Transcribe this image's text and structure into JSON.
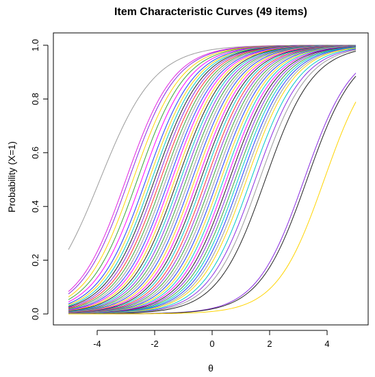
{
  "chart_data": {
    "type": "line",
    "title": "Item Characteristic Curves (49 items)",
    "xlabel": "θ",
    "ylabel": "Probability (X=1)",
    "xlim": [
      -5,
      5
    ],
    "ylim": [
      0,
      1
    ],
    "x_ticks": [
      -4,
      -2,
      0,
      2,
      4
    ],
    "y_ticks": [
      0.0,
      0.2,
      0.4,
      0.6,
      0.8,
      1.0
    ],
    "x_tick_labels": [
      "-4",
      "-2",
      "0",
      "2",
      "4"
    ],
    "y_tick_labels": [
      "0.0",
      "0.2",
      "0.4",
      "0.6",
      "0.8",
      "1.0"
    ],
    "grid": false,
    "model": "logistic",
    "series": [
      {
        "discrimination": 1.05,
        "difficulty": -3.9,
        "color": "#9a9a9a"
      },
      {
        "discrimination": 1.2,
        "difficulty": -3.0,
        "color": "#e020e0"
      },
      {
        "discrimination": 1.2,
        "difficulty": -2.9,
        "color": "#8a2be2"
      },
      {
        "discrimination": 1.2,
        "difficulty": -2.75,
        "color": "#ffd400"
      },
      {
        "discrimination": 1.2,
        "difficulty": -2.6,
        "color": "#3aa53a"
      },
      {
        "discrimination": 1.2,
        "difficulty": -2.45,
        "color": "#ff00ff"
      },
      {
        "discrimination": 1.2,
        "difficulty": -2.3,
        "color": "#1e3cff"
      },
      {
        "discrimination": 1.2,
        "difficulty": -2.2,
        "color": "#ffd400"
      },
      {
        "discrimination": 1.2,
        "difficulty": -2.1,
        "color": "#00c8c8"
      },
      {
        "discrimination": 1.2,
        "difficulty": -2.0,
        "color": "#222222"
      },
      {
        "discrimination": 1.2,
        "difficulty": -1.9,
        "color": "#8a2be2"
      },
      {
        "discrimination": 1.2,
        "difficulty": -1.8,
        "color": "#ff3030"
      },
      {
        "discrimination": 1.2,
        "difficulty": -1.7,
        "color": "#3aa53a"
      },
      {
        "discrimination": 1.2,
        "difficulty": -1.6,
        "color": "#9a9a9a"
      },
      {
        "discrimination": 1.2,
        "difficulty": -1.5,
        "color": "#1e3cff"
      },
      {
        "discrimination": 1.2,
        "difficulty": -1.4,
        "color": "#ff00ff"
      },
      {
        "discrimination": 1.2,
        "difficulty": -1.3,
        "color": "#ffd400"
      },
      {
        "discrimination": 1.2,
        "difficulty": -1.2,
        "color": "#222222"
      },
      {
        "discrimination": 1.2,
        "difficulty": -1.1,
        "color": "#00c8c8"
      },
      {
        "discrimination": 1.2,
        "difficulty": -1.0,
        "color": "#8a2be2"
      },
      {
        "discrimination": 1.2,
        "difficulty": -0.9,
        "color": "#3aa53a"
      },
      {
        "discrimination": 1.2,
        "difficulty": -0.8,
        "color": "#9a9a9a"
      },
      {
        "discrimination": 1.2,
        "difficulty": -0.7,
        "color": "#1e3cff"
      },
      {
        "discrimination": 1.2,
        "difficulty": -0.6,
        "color": "#ffd400"
      },
      {
        "discrimination": 1.2,
        "difficulty": -0.5,
        "color": "#ff00ff"
      },
      {
        "discrimination": 1.2,
        "difficulty": -0.4,
        "color": "#222222"
      },
      {
        "discrimination": 1.2,
        "difficulty": -0.3,
        "color": "#00c8c8"
      },
      {
        "discrimination": 1.2,
        "difficulty": -0.2,
        "color": "#ff3030"
      },
      {
        "discrimination": 1.2,
        "difficulty": -0.1,
        "color": "#8a2be2"
      },
      {
        "discrimination": 1.2,
        "difficulty": 0.0,
        "color": "#3aa53a"
      },
      {
        "discrimination": 1.2,
        "difficulty": 0.1,
        "color": "#9a9a9a"
      },
      {
        "discrimination": 1.2,
        "difficulty": 0.2,
        "color": "#1e3cff"
      },
      {
        "discrimination": 1.2,
        "difficulty": 0.3,
        "color": "#ffd400"
      },
      {
        "discrimination": 1.2,
        "difficulty": 0.4,
        "color": "#00c8c8"
      },
      {
        "discrimination": 1.2,
        "difficulty": 0.5,
        "color": "#ff00ff"
      },
      {
        "discrimination": 1.2,
        "difficulty": 0.6,
        "color": "#222222"
      },
      {
        "discrimination": 1.2,
        "difficulty": 0.7,
        "color": "#8a2be2"
      },
      {
        "discrimination": 1.2,
        "difficulty": 0.8,
        "color": "#3aa53a"
      },
      {
        "discrimination": 1.2,
        "difficulty": 0.9,
        "color": "#00c8c8"
      },
      {
        "discrimination": 1.2,
        "difficulty": 1.0,
        "color": "#1e3cff"
      },
      {
        "discrimination": 1.2,
        "difficulty": 1.1,
        "color": "#9a9a9a"
      },
      {
        "discrimination": 1.2,
        "difficulty": 1.2,
        "color": "#ffd400"
      },
      {
        "discrimination": 1.2,
        "difficulty": 1.35,
        "color": "#00c8c8"
      },
      {
        "discrimination": 1.2,
        "difficulty": 1.5,
        "color": "#8a2be2"
      },
      {
        "discrimination": 1.2,
        "difficulty": 1.65,
        "color": "#9a9a9a"
      },
      {
        "discrimination": 1.2,
        "difficulty": 1.85,
        "color": "#222222"
      },
      {
        "discrimination": 1.2,
        "difficulty": 3.2,
        "color": "#8a2be2"
      },
      {
        "discrimination": 1.2,
        "difficulty": 3.3,
        "color": "#222222"
      },
      {
        "discrimination": 1.2,
        "difficulty": 3.9,
        "color": "#ffd400"
      }
    ]
  }
}
